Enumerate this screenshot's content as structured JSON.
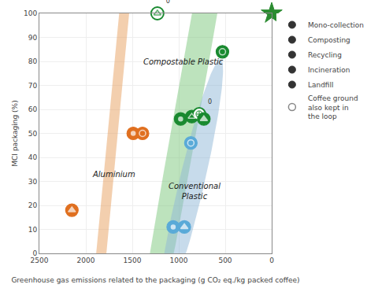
{
  "chart_data": {
    "type": "scatter",
    "xlabel": "Greenhouse gas emissions related to the packaging (g CO₂ eq./kg packed coffee)",
    "ylabel": "MCI packaging (%)",
    "xlim": [
      2500,
      0
    ],
    "ylim": [
      0,
      100
    ],
    "xticks": [
      2500,
      2000,
      1500,
      1000,
      500,
      0
    ],
    "yticks": [
      0,
      10,
      20,
      30,
      40,
      50,
      60,
      70,
      80,
      90,
      100
    ],
    "grid": true,
    "legend": "right",
    "ellipses": [
      {
        "name": "Compostable Plastic",
        "cx": 850,
        "cy": 72,
        "width": 2000,
        "height": 58,
        "angle": -12,
        "color": "#7ec87e",
        "label_x": 950,
        "label_y": 80
      },
      {
        "name": "Aluminium",
        "cx": 1750,
        "cy": 34,
        "width": 1300,
        "height": 42,
        "angle": -22,
        "color": "#e8a060",
        "label_x": 1700,
        "label_y": 33
      },
      {
        "name": "Conventional\nPlastic",
        "cx": 870,
        "cy": 28,
        "width": 700,
        "height": 42,
        "angle": -8,
        "color": "#90b8d8",
        "label_x": 830,
        "label_y": 26
      }
    ],
    "points": {
      "x": [
        1230,
        530,
        1490,
        1390,
        980,
        860,
        780,
        730,
        2150,
        1060,
        940,
        870
      ],
      "y": [
        100,
        84,
        50,
        50,
        56,
        57,
        58,
        56,
        18,
        11,
        11,
        46
      ],
      "colors": [
        "#1a8a30",
        "#1a8a30",
        "#e07020",
        "#e07020",
        "#1a8a30",
        "#1a8a30",
        "#1a8a30",
        "#1a8a30",
        "#e07020",
        "#5aaad8",
        "#5aaad8",
        "#5aaad8"
      ],
      "markers": [
        "composting",
        "recycling",
        "incineration",
        "recycling",
        "incineration",
        "composting",
        "mono_collection",
        "landfill",
        "landfill",
        "incineration",
        "landfill",
        "recycling"
      ],
      "rings": [
        true,
        false,
        false,
        false,
        false,
        false,
        true,
        false,
        false,
        false,
        false,
        false
      ],
      "notes": [
        "0",
        null,
        null,
        null,
        null,
        null,
        "0",
        null,
        null,
        null,
        null,
        null
      ]
    },
    "star": {
      "x": 0,
      "y": 100,
      "color": "#2a8b30",
      "marker": "star"
    },
    "legend_items": [
      {
        "label": "Mono-collection",
        "marker": "filled",
        "color": "#333333"
      },
      {
        "label": "Composting",
        "marker": "filled",
        "color": "#333333"
      },
      {
        "label": "Recycling",
        "marker": "filled",
        "color": "#333333"
      },
      {
        "label": "Incineration",
        "marker": "filled",
        "color": "#333333"
      },
      {
        "label": "Landfill",
        "marker": "filled",
        "color": "#333333"
      },
      {
        "label": "Coffee ground\nalso kept in\nthe loop",
        "marker": "ring",
        "color": "#888888"
      }
    ]
  }
}
